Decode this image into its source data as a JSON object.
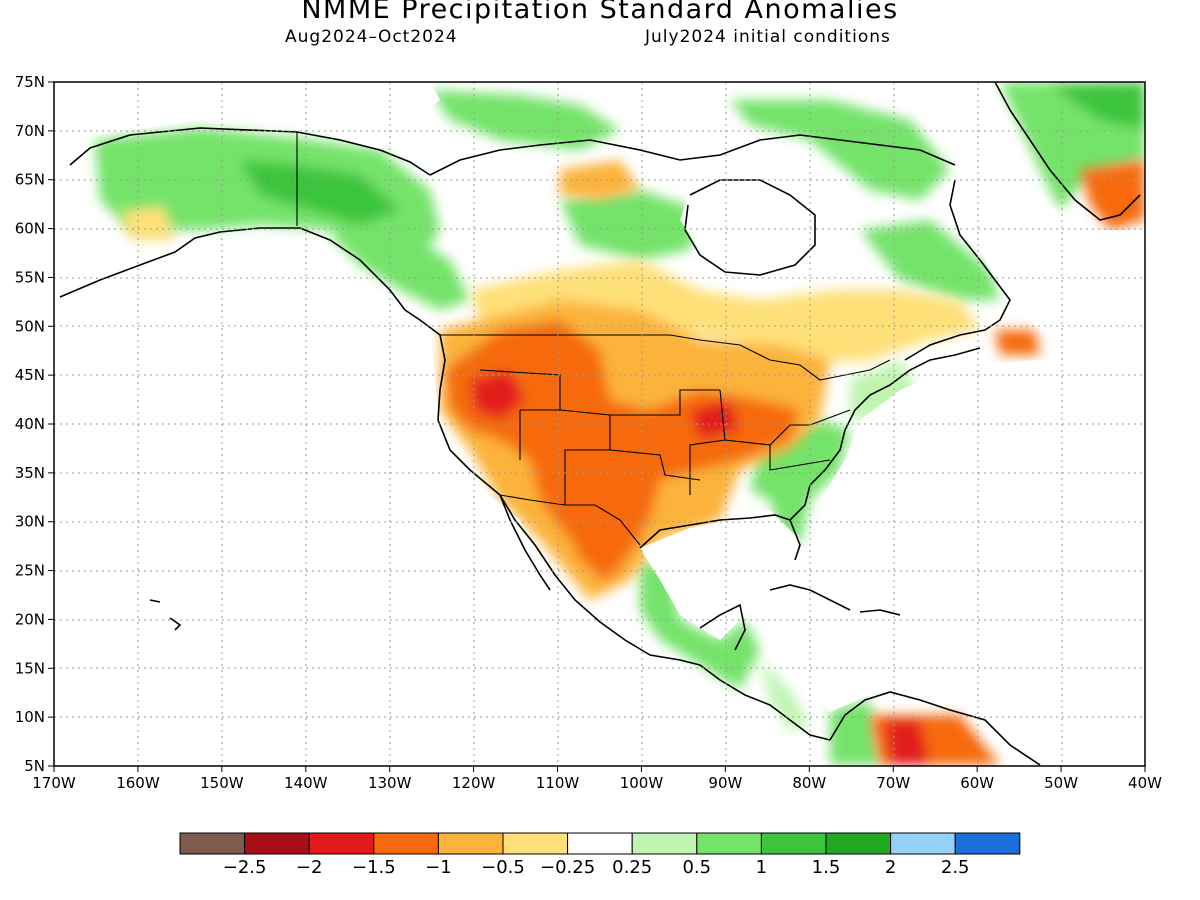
{
  "title": "NMME Precipitation Standard Anomalies",
  "period": "Aug2024–Oct2024",
  "init": "July2024 initial conditions",
  "lat_ticks": [
    "75N",
    "70N",
    "65N",
    "60N",
    "55N",
    "50N",
    "45N",
    "40N",
    "35N",
    "30N",
    "25N",
    "20N",
    "15N",
    "10N",
    "5N"
  ],
  "lon_ticks": [
    "170W",
    "160W",
    "150W",
    "140W",
    "130W",
    "120W",
    "110W",
    "100W",
    "90W",
    "80W",
    "70W",
    "60W",
    "50W",
    "40W"
  ],
  "colorbar": {
    "colors": [
      "#7f5a4e",
      "#a50f15",
      "#e31a1c",
      "#f66a0d",
      "#fbb33b",
      "#fee079",
      "#ffffff",
      "#bff5b0",
      "#74e36a",
      "#3ec43c",
      "#21a823",
      "#96cff7",
      "#1c6fd8"
    ],
    "labels": [
      "−2.5",
      "−2",
      "−1.5",
      "−1",
      "−0.5",
      "−0.25",
      "0.25",
      "0.5",
      "1",
      "1.5",
      "2",
      "2.5"
    ]
  },
  "map": {
    "lon_range": [
      -170,
      -40
    ],
    "lat_range": [
      5,
      75
    ],
    "ocean_color": "#ffffff",
    "coast_color": "#000000",
    "grid_style": "dotted gray"
  }
}
